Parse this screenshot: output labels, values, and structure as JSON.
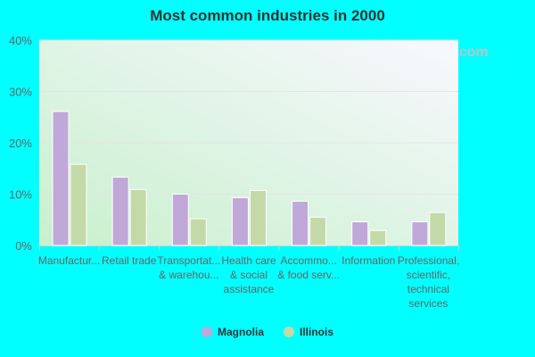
{
  "chart_data": {
    "type": "bar",
    "title": "Most common industries in 2000",
    "categories": [
      [
        "Manufactur..."
      ],
      [
        "Retail trade"
      ],
      [
        "Transportat...",
        "& warehou..."
      ],
      [
        "Health care",
        "& social",
        "assistance"
      ],
      [
        "Accommo...",
        "& food serv..."
      ],
      [
        "Information"
      ],
      [
        "Professional,",
        "scientific,",
        "technical",
        "services"
      ]
    ],
    "series": [
      {
        "name": "Magnolia",
        "color": "#c0a8d8",
        "values": [
          26.1,
          13.3,
          10.0,
          9.3,
          8.6,
          4.6,
          4.6
        ]
      },
      {
        "name": "Illinois",
        "color": "#c4d9a8",
        "values": [
          15.8,
          10.9,
          5.2,
          10.7,
          5.5,
          2.9,
          6.4
        ]
      }
    ],
    "ylim": [
      0,
      40
    ],
    "yticks": [
      "0%",
      "10%",
      "20%",
      "30%",
      "40%"
    ],
    "grid": true,
    "legend": "bottom"
  },
  "watermark": "City-Data.com"
}
